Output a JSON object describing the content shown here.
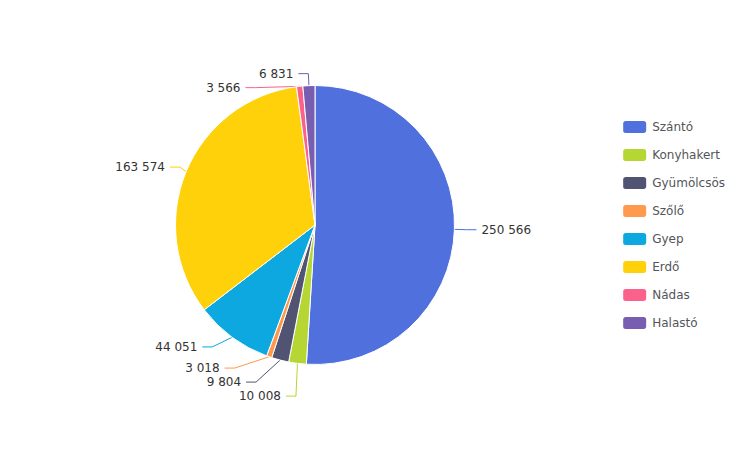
{
  "chart_data": {
    "type": "pie",
    "categories": [
      "Szántó",
      "Konyhakert",
      "Gyümölcsös",
      "Szőlő",
      "Gyep",
      "Erdő",
      "Nádas",
      "Halastó"
    ],
    "values": [
      250566,
      10008,
      9804,
      3018,
      44051,
      163574,
      3566,
      6831
    ],
    "value_labels": [
      "250 566",
      "10 008",
      "9 804",
      "3 018",
      "44 051",
      "163 574",
      "3 566",
      "6 831"
    ],
    "data_labels": true,
    "legend": "right"
  }
}
